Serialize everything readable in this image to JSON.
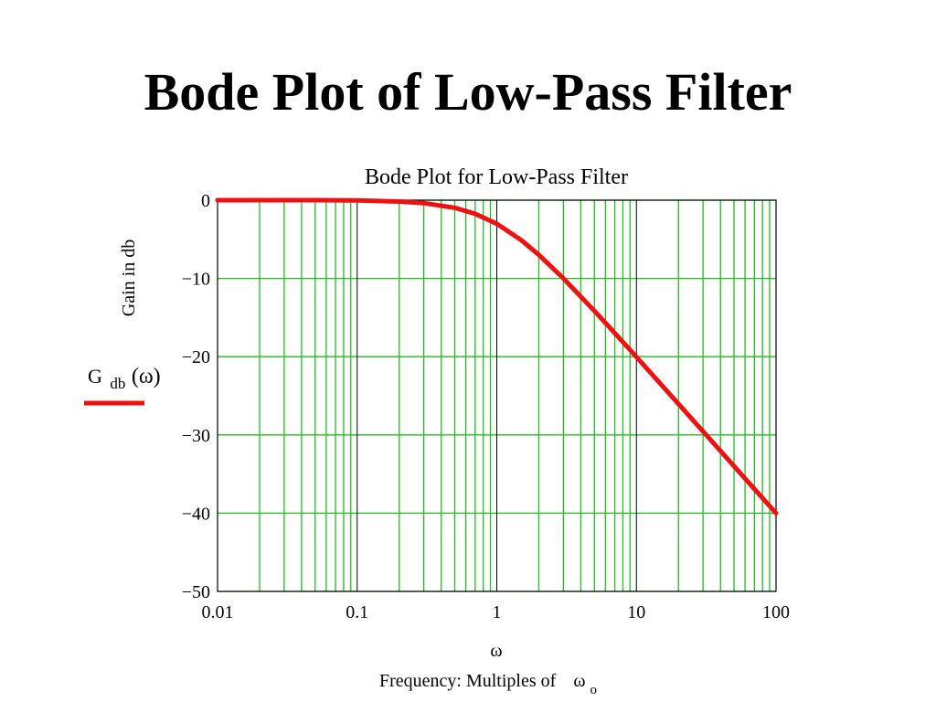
{
  "slide_title": "Bode Plot of Low-Pass Filter",
  "colors": {
    "background": "#ffffff",
    "minor_grid": "#22bb22",
    "major_grid": "#000000",
    "series": "#ee1111"
  },
  "chart_data": {
    "type": "line",
    "title": "Bode Plot for Low-Pass Filter",
    "xlabel": "Frequency: Multiples of",
    "xlabel_symbol": "ω",
    "xlabel_subscript": "o",
    "x_var": "ω",
    "ylabel": "Gain in db",
    "legend_label": {
      "main": "G",
      "sub": "db",
      "arg": "(ω)"
    },
    "x_scale": "log",
    "xlim": [
      0.01,
      100
    ],
    "ylim": [
      -50,
      0
    ],
    "x_ticks": [
      0.01,
      0.1,
      1,
      10,
      100
    ],
    "x_tick_labels": [
      "0.01",
      "0.1",
      "1",
      "10",
      "100"
    ],
    "y_ticks": [
      0,
      -10,
      -20,
      -30,
      -40,
      -50
    ],
    "y_tick_labels": [
      "0",
      "−10",
      "−20",
      "−30",
      "−40",
      "−50"
    ],
    "grid": true,
    "legend_position": "left",
    "series": [
      {
        "x": [
          0.01,
          0.02,
          0.05,
          0.1,
          0.2,
          0.3,
          0.5,
          0.7,
          1,
          1.5,
          2,
          3,
          5,
          7,
          10,
          20,
          30,
          50,
          70,
          100
        ],
        "y": [
          0,
          0,
          0,
          -0.04,
          -0.17,
          -0.37,
          -0.97,
          -1.74,
          -3.01,
          -5.12,
          -6.99,
          -10.0,
          -14.15,
          -16.99,
          -20.04,
          -26.03,
          -29.55,
          -33.98,
          -36.9,
          -40.0
        ]
      }
    ]
  }
}
